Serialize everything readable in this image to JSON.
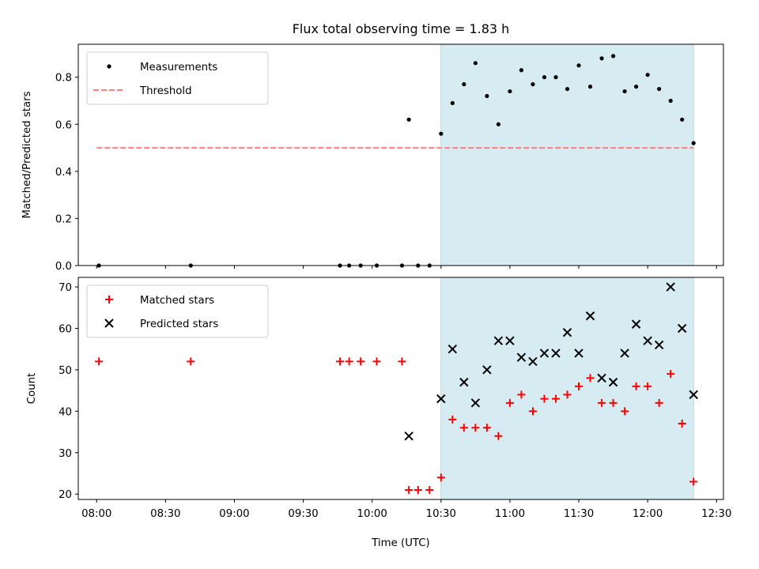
{
  "chart_data": {
    "title": "Flux total observing time = 1.83 h",
    "xlabel": "Time (UTC)",
    "x_ticks": [
      "08:00",
      "08:30",
      "09:00",
      "09:30",
      "10:00",
      "10:30",
      "11:00",
      "11:30",
      "12:00",
      "12:30"
    ],
    "xlim": [
      "07:52",
      "12:33"
    ],
    "shaded_interval": {
      "start": "10:30",
      "end": "12:20",
      "color": "#add8e6"
    },
    "panels": [
      {
        "type": "scatter",
        "ylabel": "Matched/Predicted stars",
        "ylim": [
          0,
          0.94
        ],
        "y_ticks": [
          "0.0",
          "0.2",
          "0.4",
          "0.6",
          "0.8"
        ],
        "legend_position": "top-left",
        "series": [
          {
            "name": "Measurements",
            "marker": "dot",
            "color": "#000000",
            "x": [
              "08:01",
              "08:41",
              "09:46",
              "09:50",
              "09:55",
              "10:02",
              "10:13",
              "10:20",
              "10:25",
              "10:30",
              "10:35",
              "10:40",
              "10:45",
              "10:50",
              "10:55",
              "11:00",
              "11:05",
              "11:10",
              "11:15",
              "11:20",
              "11:25",
              "11:30",
              "11:35",
              "11:40",
              "11:45",
              "11:50",
              "11:55",
              "12:00",
              "12:05",
              "12:10",
              "12:15",
              "12:20",
              "10:16"
            ],
            "y": [
              0,
              0,
              0,
              0,
              0,
              0,
              0,
              0,
              0,
              0.56,
              0.69,
              0.77,
              0.86,
              0.72,
              0.6,
              0.74,
              0.83,
              0.77,
              0.8,
              0.8,
              0.75,
              0.85,
              0.76,
              0.88,
              0.89,
              0.74,
              0.76,
              0.81,
              0.75,
              0.7,
              0.62,
              0.52,
              0.62
            ]
          },
          {
            "name": "Threshold",
            "marker": "dashed-line",
            "color": "#ff7f7f",
            "x": [
              "08:00",
              "12:20"
            ],
            "y": [
              0.5,
              0.5
            ]
          }
        ]
      },
      {
        "type": "scatter",
        "ylabel": "Count",
        "ylim": [
          18.7,
          72.3
        ],
        "y_ticks": [
          "20",
          "30",
          "40",
          "50",
          "60",
          "70"
        ],
        "legend_position": "top-left",
        "series": [
          {
            "name": "Matched stars",
            "marker": "plus",
            "color": "#ff0000",
            "x": [
              "08:01",
              "08:41",
              "09:46",
              "09:50",
              "09:55",
              "10:02",
              "10:13",
              "10:16",
              "10:20",
              "10:25",
              "10:30",
              "10:35",
              "10:40",
              "10:45",
              "10:50",
              "10:55",
              "11:00",
              "11:05",
              "11:10",
              "11:15",
              "11:20",
              "11:25",
              "11:30",
              "11:35",
              "11:40",
              "11:45",
              "11:50",
              "11:55",
              "12:00",
              "12:05",
              "12:10",
              "12:15",
              "12:20"
            ],
            "y": [
              52,
              52,
              52,
              52,
              52,
              52,
              52,
              21,
              21,
              21,
              24,
              38,
              36,
              36,
              36,
              34,
              42,
              44,
              40,
              43,
              43,
              44,
              46,
              48,
              42,
              42,
              40,
              46,
              46,
              42,
              49,
              37,
              23
            ]
          },
          {
            "name": "Predicted stars",
            "marker": "x",
            "color": "#000000",
            "x": [
              "10:16",
              "10:30",
              "10:35",
              "10:40",
              "10:45",
              "10:50",
              "10:55",
              "11:00",
              "11:05",
              "11:10",
              "11:15",
              "11:20",
              "11:25",
              "11:30",
              "11:35",
              "11:40",
              "11:45",
              "11:50",
              "11:55",
              "12:00",
              "12:05",
              "12:10",
              "12:15",
              "12:20"
            ],
            "y": [
              34,
              43,
              55,
              47,
              42,
              50,
              57,
              57,
              53,
              52,
              54,
              54,
              59,
              54,
              63,
              48,
              47,
              54,
              61,
              57,
              56,
              70,
              60,
              44
            ]
          }
        ]
      }
    ]
  }
}
